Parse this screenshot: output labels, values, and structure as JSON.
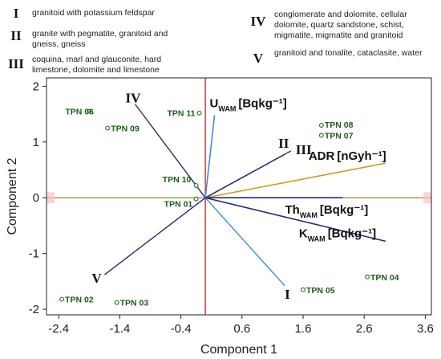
{
  "legend": [
    {
      "num": "I",
      "text": "granitoid with potassium feldspar"
    },
    {
      "num": "II",
      "text": "granite with pegmatite, granitoid and gneiss, gneiss"
    },
    {
      "num": "III",
      "text": "coquina, marl and glauconite, hard limestone, dolomite and limestone"
    },
    {
      "num": "IV",
      "text": "conglomerate and dolomite, cellular dolomite, quartz sandstone, schist, migmatite, migmatite and granitoid"
    },
    {
      "num": "V",
      "text": "granitoid and tonalite, cataclasite, water"
    }
  ],
  "chart_data": {
    "type": "scatter",
    "xlabel": "Component 1",
    "ylabel": "Component 2",
    "xlim": [
      -2.6,
      3.7
    ],
    "ylim": [
      -2.1,
      2.15
    ],
    "xticks": [
      -2.4,
      -1.4,
      -0.4,
      0.6,
      1.6,
      2.6,
      3.6
    ],
    "xtick_labels": [
      "-2.4",
      "-1.4",
      "-0.4",
      "0.6",
      "1.6",
      "2.6",
      "3.6"
    ],
    "yticks": [
      -2,
      -1,
      0,
      1,
      2
    ],
    "ytick_labels": [
      "-2",
      "-1",
      "0",
      "1",
      "2"
    ],
    "points": [
      {
        "label": "TPN 06",
        "x": -1.9,
        "y": 1.55
      },
      {
        "label": "TPN 09",
        "x": -1.6,
        "y": 1.25
      },
      {
        "label": "TPN 11",
        "x": -0.1,
        "y": 1.52
      },
      {
        "label": "TPN 08",
        "x": 1.9,
        "y": 1.3
      },
      {
        "label": "TPN 07",
        "x": 1.9,
        "y": 1.12
      },
      {
        "label": "TPN 10",
        "x": -0.15,
        "y": 0.22
      },
      {
        "label": "TPN 01",
        "x": -0.15,
        "y": -0.02
      },
      {
        "label": "TPN 02",
        "x": -2.35,
        "y": -1.82
      },
      {
        "label": "TPN 03",
        "x": -1.45,
        "y": -1.88
      },
      {
        "label": "TPN 05",
        "x": 1.6,
        "y": -1.65
      },
      {
        "label": "TPN 04",
        "x": 2.65,
        "y": -1.42
      }
    ],
    "group_vectors": [
      {
        "name": "IV",
        "x": -1.15,
        "y": 1.68,
        "color": "#2b2878"
      },
      {
        "name": "II",
        "x": 1.3,
        "y": 0.78,
        "color": "#2b2878"
      },
      {
        "name": "III",
        "x": 1.4,
        "y": 0.84,
        "color": "#2b2878"
      },
      {
        "name": "V",
        "x": -1.65,
        "y": -1.38,
        "color": "#2b2878"
      },
      {
        "name": "I",
        "x": 1.3,
        "y": -1.58,
        "color": "#3d8fe0"
      }
    ],
    "variable_vectors": [
      {
        "name": "U",
        "subscript": "WAM",
        "unit": "[Bqkg⁻¹]",
        "x": 0.15,
        "y": 1.48,
        "color": "#3d8fe0"
      },
      {
        "name": "ADR",
        "subscript": "",
        "unit": "[nGyh⁻¹]",
        "x": 2.95,
        "y": 0.62,
        "color": "#d39a1c"
      },
      {
        "name": "Th",
        "subscript": "WAM",
        "unit": "[Bqkg⁻¹]",
        "x": 2.25,
        "y": 0.0,
        "color": "#2b2878"
      },
      {
        "name": "K",
        "subscript": "WAM",
        "unit": "[Bqkg⁻¹]",
        "x": 2.95,
        "y": -0.78,
        "color": "#2b2878"
      }
    ],
    "reference_lines": {
      "horizontal_color": "#b87820",
      "vertical_color": "#d61e1e"
    }
  }
}
